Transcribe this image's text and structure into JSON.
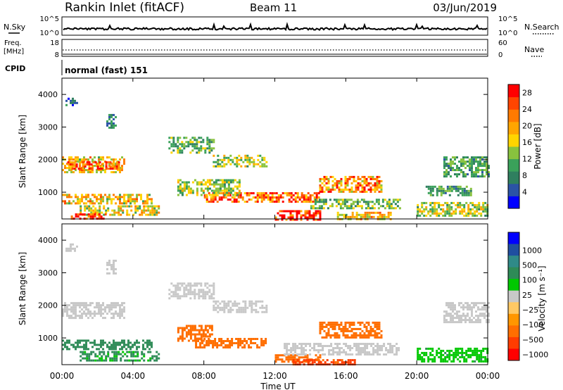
{
  "header": {
    "title": "Rankin Inlet (fitACF)",
    "beam": "Beam 11",
    "date": "03/Jun/2019"
  },
  "strip_labels": {
    "nsky": "N.Sky",
    "nsearch": "N.Search",
    "freq": "Freq.",
    "freq_unit": "[MHz]",
    "nave": "Nave",
    "cpid": "CPID",
    "cpid_value": "normal (fast) 151"
  },
  "strip_ticks": {
    "noise_left": [
      "10^5",
      "10^0"
    ],
    "noise_right": [
      "10^5",
      "10^0"
    ],
    "freq_left": [
      "18",
      "8"
    ],
    "nave_right": [
      "60",
      "0"
    ]
  },
  "colors": {
    "power_scale": [
      "#0000ff",
      "#2b53a6",
      "#2f7f5f",
      "#3aa15a",
      "#88c23e",
      "#ffd400",
      "#ffa500",
      "#ff7a00",
      "#ff4500",
      "#ff0000"
    ],
    "velocity_scale": [
      "#ff0000",
      "#ff3c00",
      "#ff6e00",
      "#ff9600",
      "#ffc864",
      "#c8c8c8",
      "#00c800",
      "#2e8b57",
      "#2f8a88",
      "#1f4fa0",
      "#0000ff"
    ]
  },
  "chart_data": [
    {
      "type": "heatmap",
      "name": "power",
      "xlabel": "",
      "ylabel": "Slant Range [km]",
      "xlim": [
        0,
        24
      ],
      "ylim": [
        180,
        4500
      ],
      "y_ticks": [
        1000,
        2000,
        3000,
        4000
      ],
      "colorbar": {
        "label": "Power [dB]",
        "ticks": [
          4,
          8,
          12,
          16,
          20,
          24,
          28
        ],
        "range": [
          0,
          30
        ]
      },
      "regions": [
        {
          "t0": 0.0,
          "t1": 3.5,
          "r0": 1600,
          "r1": 2100,
          "value": 18
        },
        {
          "t0": 0.3,
          "t1": 3.2,
          "r0": 1750,
          "r1": 1950,
          "value": 26
        },
        {
          "t0": 0.0,
          "t1": 5.0,
          "r0": 650,
          "r1": 950,
          "value": 18
        },
        {
          "t0": 1.0,
          "t1": 5.5,
          "r0": 300,
          "r1": 600,
          "value": 16
        },
        {
          "t0": 0.5,
          "t1": 2.5,
          "r0": 180,
          "r1": 350,
          "value": 26
        },
        {
          "t0": 6.0,
          "t1": 8.5,
          "r0": 2200,
          "r1": 2700,
          "value": 12
        },
        {
          "t0": 8.5,
          "t1": 11.5,
          "r0": 1800,
          "r1": 2150,
          "value": 14
        },
        {
          "t0": 8.0,
          "t1": 14.5,
          "r0": 700,
          "r1": 1000,
          "value": 24
        },
        {
          "t0": 6.5,
          "t1": 10.0,
          "r0": 900,
          "r1": 1400,
          "value": 14
        },
        {
          "t0": 12.0,
          "t1": 14.5,
          "r0": 180,
          "r1": 450,
          "value": 28
        },
        {
          "t0": 14.5,
          "t1": 18.0,
          "r0": 1000,
          "r1": 1500,
          "value": 22
        },
        {
          "t0": 14.0,
          "t1": 19.0,
          "r0": 500,
          "r1": 800,
          "value": 12
        },
        {
          "t0": 15.5,
          "t1": 18.5,
          "r0": 180,
          "r1": 400,
          "value": 18
        },
        {
          "t0": 20.0,
          "t1": 24.0,
          "r0": 300,
          "r1": 700,
          "value": 14
        },
        {
          "t0": 21.5,
          "t1": 24.0,
          "r0": 1500,
          "r1": 2100,
          "value": 10
        },
        {
          "t0": 0.2,
          "t1": 0.8,
          "r0": 3650,
          "r1": 3900,
          "value": 6
        },
        {
          "t0": 2.5,
          "t1": 3.0,
          "r0": 3000,
          "r1": 3400,
          "value": 8
        },
        {
          "t0": 20.5,
          "t1": 23.0,
          "r0": 900,
          "r1": 1200,
          "value": 10
        }
      ]
    },
    {
      "type": "heatmap",
      "name": "velocity",
      "xlabel": "Time UT",
      "ylabel": "Slant Range [km]",
      "xlim": [
        0,
        24
      ],
      "ylim": [
        180,
        4500
      ],
      "x_ticks": [
        "00:00",
        "04:00",
        "08:00",
        "12:00",
        "16:00",
        "20:00",
        "00:00"
      ],
      "y_ticks": [
        1000,
        2000,
        3000,
        4000
      ],
      "colorbar": {
        "label": "Velocity [m s⁻¹]",
        "ticks": [
          "1000",
          "500",
          "100",
          "25",
          "−25",
          "−100",
          "−500",
          "−1000"
        ]
      },
      "regions": [
        {
          "t0": 0.0,
          "t1": 3.5,
          "r0": 1600,
          "r1": 2100,
          "value": 0
        },
        {
          "t0": 0.0,
          "t1": 5.0,
          "r0": 650,
          "r1": 950,
          "value": 150
        },
        {
          "t0": 1.0,
          "t1": 5.5,
          "r0": 300,
          "r1": 600,
          "value": 120
        },
        {
          "t0": 6.0,
          "t1": 8.5,
          "r0": 2200,
          "r1": 2700,
          "value": 0
        },
        {
          "t0": 8.5,
          "t1": 11.5,
          "r0": 1800,
          "r1": 2150,
          "value": 0
        },
        {
          "t0": 7.5,
          "t1": 11.5,
          "r0": 700,
          "r1": 1000,
          "value": -300
        },
        {
          "t0": 6.5,
          "t1": 8.5,
          "r0": 900,
          "r1": 1400,
          "value": -400
        },
        {
          "t0": 12.0,
          "t1": 14.5,
          "r0": 300,
          "r1": 500,
          "value": -150
        },
        {
          "t0": 14.5,
          "t1": 18.0,
          "r0": 1000,
          "r1": 1500,
          "value": -350
        },
        {
          "t0": 12.5,
          "t1": 19.0,
          "r0": 500,
          "r1": 850,
          "value": 0
        },
        {
          "t0": 13.0,
          "t1": 16.5,
          "r0": 180,
          "r1": 350,
          "value": -600
        },
        {
          "t0": 20.0,
          "t1": 24.0,
          "r0": 300,
          "r1": 700,
          "value": 80
        },
        {
          "t0": 21.5,
          "t1": 24.0,
          "r0": 1500,
          "r1": 2100,
          "value": 0
        },
        {
          "t0": 0.2,
          "t1": 0.8,
          "r0": 3650,
          "r1": 3900,
          "value": 0
        },
        {
          "t0": 2.5,
          "t1": 3.0,
          "r0": 3000,
          "r1": 3400,
          "value": 0
        }
      ]
    }
  ]
}
